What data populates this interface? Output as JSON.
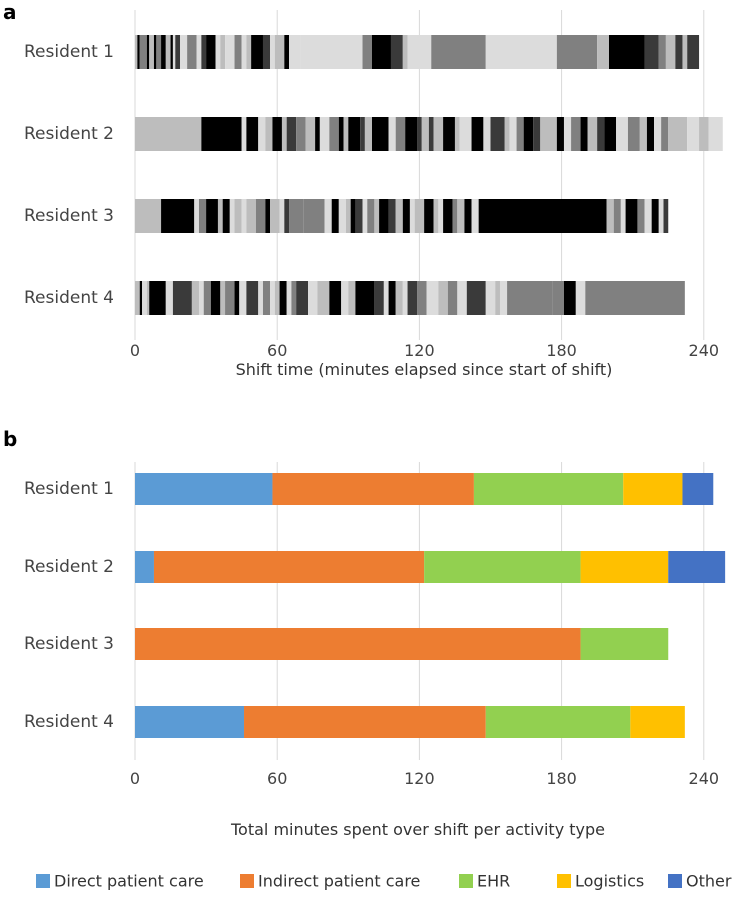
{
  "chart_data": [
    {
      "panel": "a",
      "type": "bar",
      "subtype": "timeline-stacked-horizontal",
      "xlabel": "Shift time (minutes elapsed since start of shift)",
      "xlim": [
        0,
        250
      ],
      "xticks": [
        0,
        60,
        120,
        180,
        240
      ],
      "grid": true,
      "categories": [
        "Resident 1",
        "Resident 2",
        "Resident 3",
        "Resident 4"
      ],
      "palette": {
        "k": "#000000",
        "d": "#3a3a3a",
        "m": "#808080",
        "g": "#bdbdbd",
        "l": "#dcdcdc"
      },
      "segments": [
        [
          [
            0,
            1,
            "g"
          ],
          [
            1,
            2,
            "k"
          ],
          [
            2,
            5,
            "m"
          ],
          [
            5,
            6,
            "k"
          ],
          [
            6,
            8,
            "g"
          ],
          [
            8,
            9,
            "k"
          ],
          [
            9,
            11,
            "m"
          ],
          [
            11,
            13,
            "k"
          ],
          [
            13,
            15,
            "g"
          ],
          [
            15,
            16,
            "k"
          ],
          [
            16,
            17,
            "l"
          ],
          [
            17,
            19,
            "d"
          ],
          [
            19,
            22,
            "l"
          ],
          [
            22,
            26,
            "m"
          ],
          [
            26,
            28,
            "l"
          ],
          [
            28,
            30,
            "d"
          ],
          [
            30,
            34,
            "k"
          ],
          [
            34,
            36,
            "l"
          ],
          [
            36,
            38,
            "g"
          ],
          [
            38,
            42,
            "l"
          ],
          [
            42,
            45,
            "m"
          ],
          [
            45,
            47,
            "l"
          ],
          [
            47,
            49,
            "g"
          ],
          [
            49,
            54,
            "k"
          ],
          [
            54,
            57,
            "d"
          ],
          [
            57,
            59,
            "l"
          ],
          [
            59,
            63,
            "g"
          ],
          [
            63,
            65,
            "k"
          ],
          [
            65,
            70,
            "l"
          ],
          [
            70,
            96,
            "l"
          ],
          [
            96,
            100,
            "m"
          ],
          [
            100,
            108,
            "k"
          ],
          [
            108,
            113,
            "d"
          ],
          [
            113,
            115,
            "g"
          ],
          [
            115,
            125,
            "l"
          ],
          [
            125,
            148,
            "m"
          ],
          [
            148,
            154,
            "l"
          ],
          [
            154,
            178,
            "l"
          ],
          [
            178,
            195,
            "m"
          ],
          [
            195,
            200,
            "g"
          ],
          [
            200,
            215,
            "k"
          ],
          [
            215,
            221,
            "d"
          ],
          [
            221,
            224,
            "m"
          ],
          [
            224,
            228,
            "g"
          ],
          [
            228,
            231,
            "d"
          ],
          [
            231,
            233,
            "g"
          ],
          [
            233,
            238,
            "d"
          ]
        ],
        [
          [
            0,
            28,
            "g"
          ],
          [
            28,
            45,
            "k"
          ],
          [
            45,
            47,
            "l"
          ],
          [
            47,
            52,
            "k"
          ],
          [
            52,
            55,
            "l"
          ],
          [
            55,
            58,
            "g"
          ],
          [
            58,
            62,
            "k"
          ],
          [
            62,
            64,
            "g"
          ],
          [
            64,
            68,
            "d"
          ],
          [
            68,
            72,
            "m"
          ],
          [
            72,
            76,
            "g"
          ],
          [
            76,
            78,
            "k"
          ],
          [
            78,
            82,
            "l"
          ],
          [
            82,
            86,
            "m"
          ],
          [
            86,
            88,
            "k"
          ],
          [
            88,
            90,
            "g"
          ],
          [
            90,
            95,
            "k"
          ],
          [
            95,
            97,
            "d"
          ],
          [
            97,
            100,
            "g"
          ],
          [
            100,
            107,
            "k"
          ],
          [
            107,
            110,
            "l"
          ],
          [
            110,
            114,
            "m"
          ],
          [
            114,
            119,
            "k"
          ],
          [
            119,
            121,
            "d"
          ],
          [
            121,
            124,
            "g"
          ],
          [
            124,
            126,
            "d"
          ],
          [
            126,
            130,
            "g"
          ],
          [
            130,
            135,
            "k"
          ],
          [
            135,
            137,
            "g"
          ],
          [
            137,
            142,
            "l"
          ],
          [
            142,
            147,
            "k"
          ],
          [
            147,
            150,
            "l"
          ],
          [
            150,
            156,
            "d"
          ],
          [
            156,
            158,
            "g"
          ],
          [
            158,
            161,
            "l"
          ],
          [
            161,
            164,
            "m"
          ],
          [
            164,
            168,
            "k"
          ],
          [
            168,
            171,
            "d"
          ],
          [
            171,
            178,
            "g"
          ],
          [
            178,
            181,
            "k"
          ],
          [
            181,
            184,
            "l"
          ],
          [
            184,
            188,
            "m"
          ],
          [
            188,
            191,
            "k"
          ],
          [
            191,
            195,
            "g"
          ],
          [
            195,
            198,
            "d"
          ],
          [
            198,
            203,
            "k"
          ],
          [
            203,
            208,
            "l"
          ],
          [
            208,
            213,
            "m"
          ],
          [
            213,
            216,
            "g"
          ],
          [
            216,
            219,
            "k"
          ],
          [
            219,
            222,
            "l"
          ],
          [
            222,
            225,
            "m"
          ],
          [
            225,
            233,
            "g"
          ],
          [
            233,
            238,
            "l"
          ],
          [
            238,
            242,
            "g"
          ],
          [
            242,
            248,
            "l"
          ]
        ],
        [
          [
            0,
            11,
            "g"
          ],
          [
            11,
            25,
            "k"
          ],
          [
            25,
            27,
            "l"
          ],
          [
            27,
            30,
            "m"
          ],
          [
            30,
            35,
            "k"
          ],
          [
            35,
            37,
            "g"
          ],
          [
            37,
            40,
            "k"
          ],
          [
            40,
            42,
            "l"
          ],
          [
            42,
            45,
            "g"
          ],
          [
            45,
            47,
            "l"
          ],
          [
            47,
            51,
            "g"
          ],
          [
            51,
            55,
            "m"
          ],
          [
            55,
            57,
            "k"
          ],
          [
            57,
            61,
            "g"
          ],
          [
            61,
            63,
            "l"
          ],
          [
            63,
            65,
            "d"
          ],
          [
            65,
            71,
            "m"
          ],
          [
            71,
            80,
            "m"
          ],
          [
            80,
            83,
            "l"
          ],
          [
            83,
            86,
            "k"
          ],
          [
            86,
            89,
            "l"
          ],
          [
            89,
            91,
            "g"
          ],
          [
            91,
            93,
            "k"
          ],
          [
            93,
            96,
            "d"
          ],
          [
            96,
            98,
            "l"
          ],
          [
            98,
            101,
            "m"
          ],
          [
            101,
            103,
            "g"
          ],
          [
            103,
            107,
            "k"
          ],
          [
            107,
            110,
            "d"
          ],
          [
            110,
            113,
            "g"
          ],
          [
            113,
            116,
            "k"
          ],
          [
            116,
            118,
            "l"
          ],
          [
            118,
            122,
            "g"
          ],
          [
            122,
            126,
            "k"
          ],
          [
            126,
            128,
            "g"
          ],
          [
            128,
            130,
            "l"
          ],
          [
            130,
            134,
            "k"
          ],
          [
            134,
            136,
            "m"
          ],
          [
            136,
            139,
            "g"
          ],
          [
            139,
            142,
            "k"
          ],
          [
            142,
            145,
            "l"
          ],
          [
            145,
            199,
            "k"
          ],
          [
            199,
            202,
            "g"
          ],
          [
            202,
            205,
            "m"
          ],
          [
            205,
            207,
            "l"
          ],
          [
            207,
            212,
            "k"
          ],
          [
            212,
            215,
            "m"
          ],
          [
            215,
            218,
            "l"
          ],
          [
            218,
            221,
            "k"
          ],
          [
            221,
            223,
            "l"
          ],
          [
            223,
            225,
            "d"
          ]
        ],
        [
          [
            0,
            2,
            "g"
          ],
          [
            2,
            3,
            "k"
          ],
          [
            3,
            5,
            "l"
          ],
          [
            5,
            6,
            "g"
          ],
          [
            6,
            13,
            "k"
          ],
          [
            13,
            16,
            "l"
          ],
          [
            16,
            24,
            "d"
          ],
          [
            24,
            27,
            "g"
          ],
          [
            27,
            29,
            "l"
          ],
          [
            29,
            32,
            "m"
          ],
          [
            32,
            36,
            "k"
          ],
          [
            36,
            38,
            "g"
          ],
          [
            38,
            42,
            "m"
          ],
          [
            42,
            44,
            "k"
          ],
          [
            44,
            47,
            "l"
          ],
          [
            47,
            52,
            "d"
          ],
          [
            52,
            54,
            "l"
          ],
          [
            54,
            57,
            "m"
          ],
          [
            57,
            59,
            "l"
          ],
          [
            59,
            61,
            "g"
          ],
          [
            61,
            64,
            "k"
          ],
          [
            64,
            66,
            "l"
          ],
          [
            66,
            68,
            "m"
          ],
          [
            68,
            73,
            "d"
          ],
          [
            73,
            77,
            "l"
          ],
          [
            77,
            82,
            "g"
          ],
          [
            82,
            87,
            "k"
          ],
          [
            87,
            90,
            "l"
          ],
          [
            90,
            93,
            "g"
          ],
          [
            93,
            101,
            "k"
          ],
          [
            101,
            105,
            "d"
          ],
          [
            105,
            107,
            "l"
          ],
          [
            107,
            110,
            "k"
          ],
          [
            110,
            113,
            "g"
          ],
          [
            113,
            115,
            "l"
          ],
          [
            115,
            119,
            "d"
          ],
          [
            119,
            123,
            "m"
          ],
          [
            123,
            128,
            "l"
          ],
          [
            128,
            132,
            "g"
          ],
          [
            132,
            136,
            "m"
          ],
          [
            136,
            140,
            "l"
          ],
          [
            140,
            148,
            "d"
          ],
          [
            148,
            152,
            "l"
          ],
          [
            152,
            154,
            "g"
          ],
          [
            154,
            157,
            "l"
          ],
          [
            157,
            176,
            "m"
          ],
          [
            176,
            181,
            "m"
          ],
          [
            181,
            186,
            "k"
          ],
          [
            186,
            190,
            "l"
          ],
          [
            190,
            232,
            "m"
          ]
        ]
      ]
    },
    {
      "panel": "b",
      "type": "bar",
      "subtype": "stacked-horizontal",
      "xlabel": "Total minutes spent over shift per activity type",
      "xlim": [
        0,
        250
      ],
      "xticks": [
        0,
        60,
        120,
        180,
        240
      ],
      "grid": true,
      "legend_position": "bottom",
      "categories": [
        "Resident 1",
        "Resident 2",
        "Resident 3",
        "Resident 4"
      ],
      "series": [
        {
          "name": "Direct patient care",
          "color": "#5b9bd5",
          "values": [
            58,
            8,
            0,
            46
          ]
        },
        {
          "name": "Indirect patient care",
          "color": "#ed7d31",
          "values": [
            85,
            114,
            188,
            102
          ]
        },
        {
          "name": "EHR",
          "color": "#92d050",
          "values": [
            63,
            66,
            37,
            61
          ]
        },
        {
          "name": "Logistics",
          "color": "#ffc000",
          "values": [
            25,
            37,
            0,
            23
          ]
        },
        {
          "name": "Other",
          "color": "#4472c4",
          "values": [
            13,
            24,
            0,
            0
          ]
        }
      ]
    }
  ],
  "panels": {
    "a_label": "a",
    "b_label": "b"
  }
}
